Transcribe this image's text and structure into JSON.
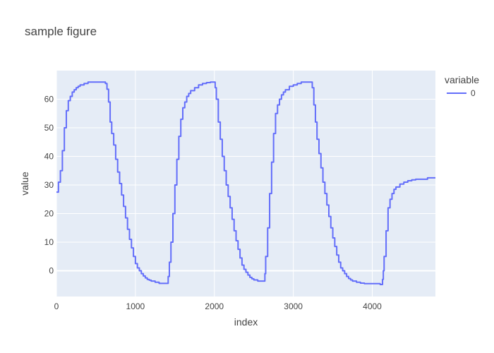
{
  "chart_data": {
    "type": "line",
    "title": "sample figure",
    "xlabel": "index",
    "ylabel": "value",
    "xlim": [
      0,
      4800
    ],
    "ylim": [
      -9,
      70
    ],
    "xticks": [
      0,
      1000,
      2000,
      3000,
      4000
    ],
    "yticks": [
      0,
      10,
      20,
      30,
      40,
      50,
      60
    ],
    "grid": true,
    "legend": {
      "title": "variable",
      "placement": "top-right"
    },
    "series": [
      {
        "name": "0",
        "color": "#636efa",
        "line_shape": "step",
        "points": [
          [
            0,
            27.5
          ],
          [
            25,
            31
          ],
          [
            50,
            35
          ],
          [
            75,
            42
          ],
          [
            100,
            50
          ],
          [
            125,
            56
          ],
          [
            150,
            59.5
          ],
          [
            175,
            61
          ],
          [
            200,
            62.5
          ],
          [
            225,
            63.3
          ],
          [
            250,
            64
          ],
          [
            275,
            64.5
          ],
          [
            300,
            65
          ],
          [
            350,
            65.5
          ],
          [
            400,
            66
          ],
          [
            450,
            66
          ],
          [
            500,
            66
          ],
          [
            550,
            66
          ],
          [
            600,
            66
          ],
          [
            620,
            65.5
          ],
          [
            640,
            63.5
          ],
          [
            660,
            59
          ],
          [
            680,
            52
          ],
          [
            700,
            48
          ],
          [
            725,
            44
          ],
          [
            750,
            39
          ],
          [
            775,
            34.5
          ],
          [
            800,
            30.5
          ],
          [
            825,
            26.5
          ],
          [
            850,
            22.5
          ],
          [
            875,
            18.5
          ],
          [
            900,
            14.5
          ],
          [
            925,
            11
          ],
          [
            950,
            8
          ],
          [
            975,
            5
          ],
          [
            1000,
            2.5
          ],
          [
            1025,
            1
          ],
          [
            1050,
            0
          ],
          [
            1075,
            -1
          ],
          [
            1100,
            -1.8
          ],
          [
            1125,
            -2.5
          ],
          [
            1150,
            -3
          ],
          [
            1175,
            -3.3
          ],
          [
            1200,
            -3.6
          ],
          [
            1250,
            -4
          ],
          [
            1300,
            -4.4
          ],
          [
            1350,
            -4.4
          ],
          [
            1400,
            -4.4
          ],
          [
            1415,
            -2
          ],
          [
            1430,
            3
          ],
          [
            1450,
            10
          ],
          [
            1475,
            20
          ],
          [
            1500,
            30
          ],
          [
            1525,
            39
          ],
          [
            1550,
            47
          ],
          [
            1575,
            53
          ],
          [
            1600,
            57
          ],
          [
            1625,
            59
          ],
          [
            1650,
            61
          ],
          [
            1675,
            62
          ],
          [
            1700,
            63
          ],
          [
            1750,
            64
          ],
          [
            1800,
            65
          ],
          [
            1850,
            65.5
          ],
          [
            1900,
            65.8
          ],
          [
            1950,
            66
          ],
          [
            2000,
            66
          ],
          [
            2010,
            64
          ],
          [
            2025,
            60
          ],
          [
            2050,
            52
          ],
          [
            2075,
            46
          ],
          [
            2100,
            40
          ],
          [
            2125,
            35
          ],
          [
            2150,
            30
          ],
          [
            2175,
            26
          ],
          [
            2200,
            22
          ],
          [
            2225,
            18
          ],
          [
            2250,
            14
          ],
          [
            2275,
            10.5
          ],
          [
            2300,
            7.5
          ],
          [
            2325,
            4.5
          ],
          [
            2350,
            2
          ],
          [
            2375,
            0.5
          ],
          [
            2400,
            -0.5
          ],
          [
            2425,
            -1.5
          ],
          [
            2450,
            -2.3
          ],
          [
            2475,
            -2.8
          ],
          [
            2500,
            -3.2
          ],
          [
            2550,
            -3.6
          ],
          [
            2600,
            -3.6
          ],
          [
            2625,
            -3.6
          ],
          [
            2640,
            -1
          ],
          [
            2650,
            5
          ],
          [
            2675,
            15
          ],
          [
            2700,
            27
          ],
          [
            2725,
            38
          ],
          [
            2750,
            48
          ],
          [
            2775,
            55
          ],
          [
            2800,
            58
          ],
          [
            2825,
            60
          ],
          [
            2850,
            61.5
          ],
          [
            2875,
            62.5
          ],
          [
            2900,
            63.3
          ],
          [
            2950,
            64.5
          ],
          [
            3000,
            65
          ],
          [
            3050,
            65.5
          ],
          [
            3100,
            66
          ],
          [
            3150,
            66
          ],
          [
            3200,
            66
          ],
          [
            3225,
            66
          ],
          [
            3240,
            64
          ],
          [
            3260,
            58
          ],
          [
            3280,
            52
          ],
          [
            3300,
            46
          ],
          [
            3325,
            41
          ],
          [
            3350,
            36
          ],
          [
            3375,
            31
          ],
          [
            3400,
            27
          ],
          [
            3425,
            23
          ],
          [
            3450,
            19
          ],
          [
            3475,
            15
          ],
          [
            3500,
            11.5
          ],
          [
            3525,
            8.5
          ],
          [
            3550,
            5.5
          ],
          [
            3575,
            3
          ],
          [
            3600,
            1
          ],
          [
            3625,
            0
          ],
          [
            3650,
            -1
          ],
          [
            3675,
            -2
          ],
          [
            3700,
            -2.7
          ],
          [
            3725,
            -3.2
          ],
          [
            3750,
            -3.6
          ],
          [
            3800,
            -4
          ],
          [
            3850,
            -4.3
          ],
          [
            3900,
            -4.5
          ],
          [
            3950,
            -4.5
          ],
          [
            4000,
            -4.5
          ],
          [
            4050,
            -4.5
          ],
          [
            4075,
            -4.5
          ],
          [
            4100,
            -4.8
          ],
          [
            4120,
            -4.8
          ],
          [
            4130,
            -3
          ],
          [
            4140,
            0
          ],
          [
            4150,
            5
          ],
          [
            4175,
            14
          ],
          [
            4200,
            22
          ],
          [
            4225,
            25
          ],
          [
            4250,
            27
          ],
          [
            4275,
            28.5
          ],
          [
            4300,
            29.3
          ],
          [
            4350,
            30.3
          ],
          [
            4400,
            31
          ],
          [
            4450,
            31.5
          ],
          [
            4500,
            31.8
          ],
          [
            4550,
            32
          ],
          [
            4600,
            32
          ],
          [
            4650,
            32
          ],
          [
            4700,
            32.5
          ],
          [
            4750,
            32.5
          ],
          [
            4800,
            32.5
          ]
        ]
      }
    ]
  }
}
